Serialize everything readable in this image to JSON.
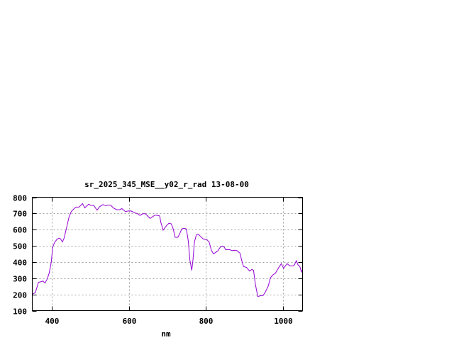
{
  "chart_data": {
    "type": "line",
    "title": "sr_2025_345_MSE__y02_r_rad 13-08-00",
    "xlabel": "nm",
    "ylabel": "",
    "xlim": [
      350,
      1050
    ],
    "ylim": [
      100,
      800
    ],
    "xticks": [
      400,
      600,
      800,
      1000
    ],
    "yticks": [
      100,
      200,
      300,
      400,
      500,
      600,
      700,
      800
    ],
    "grid": true,
    "line_color": "#9400d3",
    "series": [
      {
        "x": [
          350,
          358,
          366,
          371,
          377,
          383,
          389,
          394,
          399,
          403,
          408,
          414,
          419,
          423,
          428,
          432,
          438,
          445,
          451,
          457,
          463,
          471,
          480,
          486,
          496,
          501,
          509,
          518,
          524,
          533,
          540,
          546,
          553,
          560,
          569,
          576,
          582,
          591,
          600,
          606,
          615,
          623,
          629,
          636,
          643,
          649,
          655,
          661,
          668,
          680,
          683,
          689,
          698,
          704,
          710,
          715,
          720,
          727,
          732,
          737,
          743,
          749,
          754,
          758,
          763,
          766,
          770,
          775,
          780,
          786,
          793,
          802,
          808,
          814,
          819,
          825,
          831,
          837,
          842,
          847,
          851,
          861,
          867,
          873,
          880,
          888,
          892,
          897,
          905,
          913,
          919,
          923,
          928,
          934,
          940,
          948,
          954,
          961,
          967,
          974,
          980,
          989,
          995,
          1001,
          1010,
          1017,
          1026,
          1029,
          1034,
          1038,
          1043,
          1047,
          1050
        ],
        "y": [
          200,
          212,
          275,
          277,
          283,
          271,
          296,
          333,
          398,
          493,
          522,
          540,
          547,
          544,
          524,
          544,
          603,
          676,
          712,
          727,
          739,
          739,
          761,
          735,
          757,
          750,
          750,
          720,
          741,
          755,
          748,
          752,
          752,
          734,
          723,
          723,
          730,
          712,
          716,
          715,
          705,
          698,
          688,
          698,
          698,
          684,
          669,
          679,
          690,
          685,
          646,
          597,
          626,
          640,
          636,
          604,
          553,
          553,
          575,
          604,
          609,
          604,
          531,
          414,
          349,
          407,
          524,
          568,
          572,
          558,
          542,
          539,
          524,
          473,
          451,
          459,
          470,
          492,
          499,
          492,
          476,
          477,
          470,
          473,
          470,
          455,
          414,
          373,
          366,
          344,
          355,
          348,
          260,
          187,
          191,
          194,
          216,
          252,
          303,
          322,
          332,
          368,
          390,
          361,
          390,
          376,
          376,
          383,
          409,
          383,
          372,
          339,
          354
        ]
      }
    ]
  }
}
